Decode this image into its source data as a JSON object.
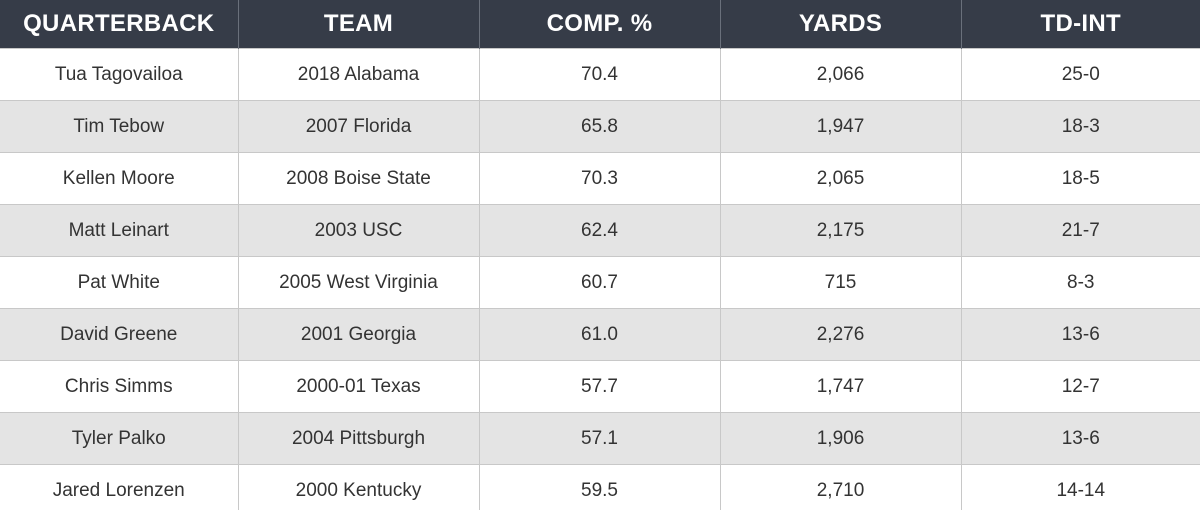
{
  "colors": {
    "header_bg": "#363c48",
    "header_text": "#ffffff",
    "row_alt_bg": "#e4e4e4",
    "row_bg": "#ffffff",
    "cell_text": "#333333"
  },
  "chart_data": {
    "type": "table",
    "columns": [
      "QUARTERBACK",
      "TEAM",
      "COMP. %",
      "YARDS",
      "TD-INT"
    ],
    "rows": [
      [
        "Tua Tagovailoa",
        "2018 Alabama",
        "70.4",
        "2,066",
        "25-0"
      ],
      [
        "Tim Tebow",
        "2007 Florida",
        "65.8",
        "1,947",
        "18-3"
      ],
      [
        "Kellen Moore",
        "2008 Boise State",
        "70.3",
        "2,065",
        "18-5"
      ],
      [
        "Matt Leinart",
        "2003 USC",
        "62.4",
        "2,175",
        "21-7"
      ],
      [
        "Pat White",
        "2005 West Virginia",
        "60.7",
        "715",
        "8-3"
      ],
      [
        "David Greene",
        "2001 Georgia",
        "61.0",
        "2,276",
        "13-6"
      ],
      [
        "Chris Simms",
        "2000-01 Texas",
        "57.7",
        "1,747",
        "12-7"
      ],
      [
        "Tyler Palko",
        "2004 Pittsburgh",
        "57.1",
        "1,906",
        "13-6"
      ],
      [
        "Jared Lorenzen",
        "2000 Kentucky",
        "59.5",
        "2,710",
        "14-14"
      ]
    ]
  }
}
